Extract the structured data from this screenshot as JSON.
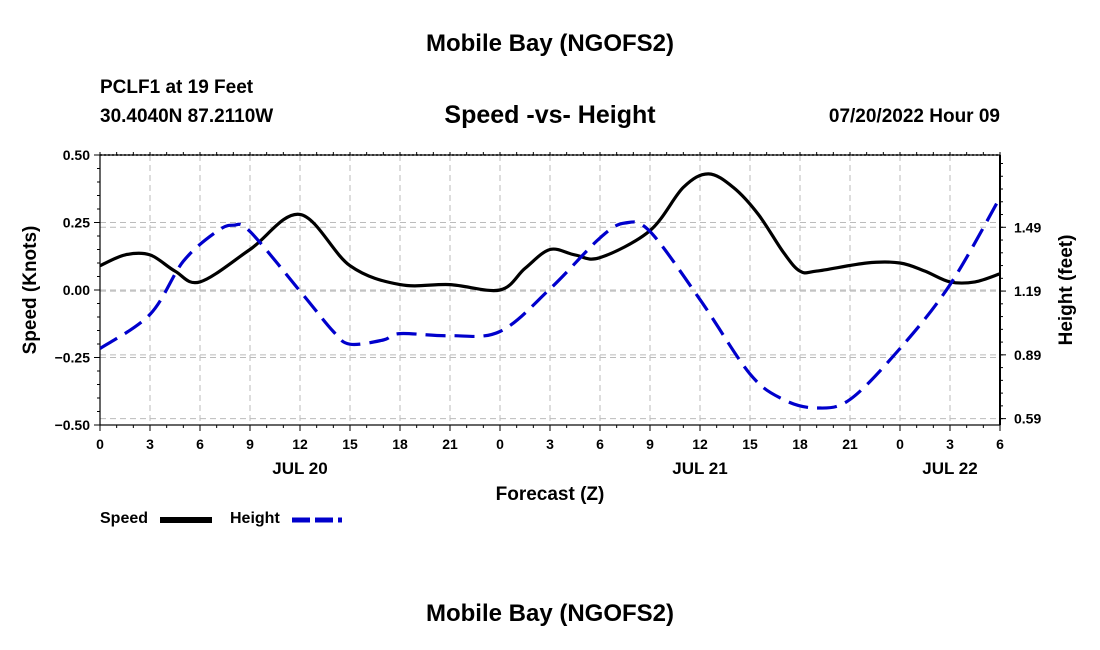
{
  "header": {
    "title": "Mobile Bay (NGOFS2)",
    "station": "PCLF1 at 19 Feet",
    "coordinates": "30.4040N  87.2110W",
    "datetime": "07/20/2022 Hour 09"
  },
  "footer": {
    "title": "Mobile Bay (NGOFS2)"
  },
  "legend": {
    "speed_label": "Speed",
    "height_label": "Height"
  },
  "colors": {
    "speed": "#000000",
    "height": "#0000cc",
    "grid": "#bbbbbb"
  },
  "chart_data": {
    "type": "line",
    "title": "Speed -vs- Height",
    "xlabel": "Forecast (Z)",
    "ylabel": "Speed (Knots)",
    "y2label": "Height (feet)",
    "xlim": [
      0,
      54
    ],
    "ylim": [
      -0.5,
      0.5
    ],
    "y2lim": [
      0.56,
      1.83
    ],
    "grid": true,
    "x_ticks": [
      0,
      3,
      6,
      9,
      12,
      15,
      18,
      21,
      24,
      27,
      30,
      33,
      36,
      39,
      42,
      45,
      48,
      51,
      54
    ],
    "x_tick_labels": [
      "0",
      "3",
      "6",
      "9",
      "12",
      "15",
      "18",
      "21",
      "0",
      "3",
      "6",
      "9",
      "12",
      "15",
      "18",
      "21",
      "0",
      "3",
      "6"
    ],
    "y_ticks": [
      -0.5,
      -0.25,
      0,
      0.25,
      0.5
    ],
    "y_tick_labels": [
      "−0.50",
      "−0.25",
      "0.00",
      "0.25",
      "0.50"
    ],
    "y2_ticks": [
      0.59,
      0.89,
      1.19,
      1.49
    ],
    "y2_tick_labels": [
      "0.59",
      "0.89",
      "1.19",
      "1.49"
    ],
    "date_labels": [
      {
        "x": 12,
        "label": "JUL 20"
      },
      {
        "x": 36,
        "label": "JUL 21"
      },
      {
        "x": 51,
        "label": "JUL 22"
      }
    ],
    "series": [
      {
        "name": "Speed",
        "axis": "left",
        "x": [
          0,
          1.5,
          3,
          4.5,
          6,
          9,
          12,
          15,
          18,
          21,
          24,
          25.5,
          27,
          28.5,
          30,
          33,
          35,
          36.5,
          38,
          39.5,
          41,
          42,
          43,
          46,
          48,
          49.5,
          51,
          52.5,
          54
        ],
        "values": [
          0.09,
          0.13,
          0.13,
          0.07,
          0.03,
          0.15,
          0.28,
          0.09,
          0.02,
          0.02,
          0.0,
          0.08,
          0.15,
          0.13,
          0.12,
          0.22,
          0.38,
          0.43,
          0.38,
          0.28,
          0.14,
          0.07,
          0.07,
          0.1,
          0.1,
          0.07,
          0.03,
          0.03,
          0.06
        ]
      },
      {
        "name": "Height",
        "axis": "right",
        "x": [
          0,
          3,
          5,
          7,
          8,
          9,
          12,
          14,
          15,
          17,
          18,
          21,
          24,
          27,
          30,
          31.5,
          33,
          36,
          39,
          41,
          43,
          45,
          48,
          51,
          54
        ],
        "values": [
          0.92,
          1.08,
          1.33,
          1.47,
          1.5,
          1.47,
          1.19,
          1.0,
          0.94,
          0.96,
          0.99,
          0.98,
          1.0,
          1.2,
          1.44,
          1.51,
          1.47,
          1.15,
          0.8,
          0.68,
          0.64,
          0.68,
          0.92,
          1.22,
          1.63
        ]
      }
    ]
  }
}
